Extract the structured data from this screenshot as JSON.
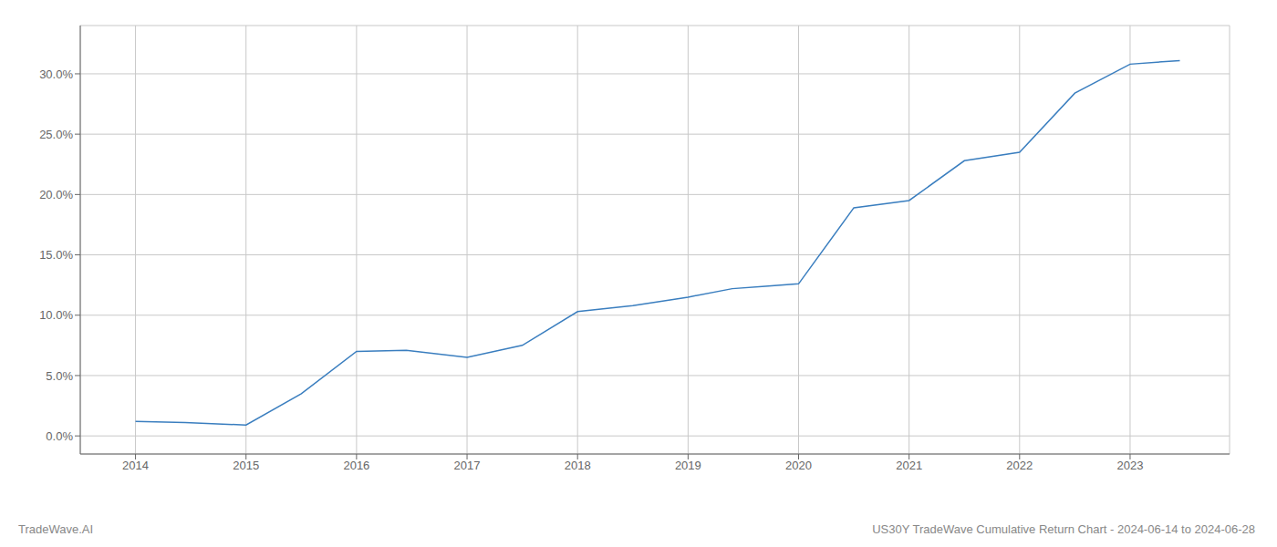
{
  "chart_data": {
    "type": "line",
    "title": "US30Y TradeWave Cumulative Return Chart - 2024-06-14 to 2024-06-28",
    "annotations": [
      "TradeWave.AI"
    ],
    "x": [
      2014.0,
      2014.45,
      2015.0,
      2015.5,
      2016.0,
      2016.45,
      2017.0,
      2017.5,
      2018.0,
      2018.5,
      2019.0,
      2019.4,
      2019.7,
      2020.0,
      2020.5,
      2021.0,
      2021.5,
      2022.0,
      2022.5,
      2023.0,
      2023.45
    ],
    "values": [
      1.2,
      1.1,
      0.9,
      3.5,
      7.0,
      7.1,
      6.5,
      7.5,
      10.3,
      10.8,
      11.5,
      12.2,
      12.4,
      12.6,
      18.9,
      19.5,
      22.8,
      23.5,
      28.4,
      30.8,
      31.1
    ],
    "color": "#3a7ebf",
    "xlim": [
      2013.5,
      2023.9
    ],
    "ylim": [
      -1.5,
      34
    ],
    "xticks": [
      2014,
      2015,
      2016,
      2017,
      2018,
      2019,
      2020,
      2021,
      2022,
      2023
    ],
    "yticks": [
      {
        "value": 0,
        "label": "0.0%"
      },
      {
        "value": 5,
        "label": "5.0%"
      },
      {
        "value": 10,
        "label": "10.0%"
      },
      {
        "value": 15,
        "label": "15.0%"
      },
      {
        "value": 20,
        "label": "20.0%"
      },
      {
        "value": 25,
        "label": "25.0%"
      },
      {
        "value": 30,
        "label": "30.0%"
      }
    ],
    "grid": true
  }
}
